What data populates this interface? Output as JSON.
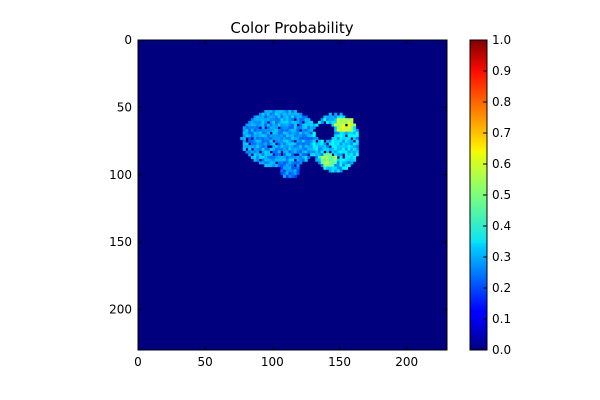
{
  "chart_data": {
    "type": "heatmap",
    "title": "Color Probability",
    "xlabel": "",
    "ylabel": "",
    "image_shape": [
      230,
      230
    ],
    "xlim": [
      0,
      230
    ],
    "ylim": [
      230,
      0
    ],
    "x_ticks": [
      {
        "value": 0,
        "label": "0"
      },
      {
        "value": 50,
        "label": "50"
      },
      {
        "value": 100,
        "label": "100"
      },
      {
        "value": 150,
        "label": "150"
      },
      {
        "value": 200,
        "label": "200"
      }
    ],
    "y_ticks": [
      {
        "value": 0,
        "label": "0"
      },
      {
        "value": 50,
        "label": "50"
      },
      {
        "value": 100,
        "label": "100"
      },
      {
        "value": 150,
        "label": "150"
      },
      {
        "value": 200,
        "label": "200"
      }
    ],
    "colormap": "jet",
    "background_value": 0.0,
    "colorbar": {
      "range": [
        0.0,
        1.0
      ],
      "ticks": [
        {
          "value": 0.0,
          "label": "0.0"
        },
        {
          "value": 0.1,
          "label": "0.1"
        },
        {
          "value": 0.2,
          "label": "0.2"
        },
        {
          "value": 0.3,
          "label": "0.3"
        },
        {
          "value": 0.4,
          "label": "0.4"
        },
        {
          "value": 0.5,
          "label": "0.5"
        },
        {
          "value": 0.6,
          "label": "0.6"
        },
        {
          "value": 0.7,
          "label": "0.7"
        },
        {
          "value": 0.8,
          "label": "0.8"
        },
        {
          "value": 0.9,
          "label": "0.9"
        },
        {
          "value": 1.0,
          "label": "1.0"
        }
      ]
    },
    "regions": [
      {
        "name": "left-lobe",
        "center": [
          105,
          72
        ],
        "radius": [
          29,
          22
        ],
        "value": 0.28,
        "noise": 0.06
      },
      {
        "name": "right-lobe",
        "center": [
          146,
          75
        ],
        "radius": [
          18,
          22
        ],
        "value": 0.32,
        "noise": 0.07
      },
      {
        "name": "right-lobe-hotspot-upper",
        "center": [
          153,
          62
        ],
        "radius": [
          7,
          6
        ],
        "value": 0.56,
        "noise": 0.06
      },
      {
        "name": "right-lobe-hotspot-lower",
        "center": [
          141,
          88
        ],
        "radius": [
          6,
          5
        ],
        "value": 0.5,
        "noise": 0.06
      },
      {
        "name": "central-hole",
        "center": [
          138,
          67
        ],
        "radius": [
          8,
          7
        ],
        "value": 0.0,
        "noise": 0.0
      },
      {
        "name": "lower-tail",
        "center": [
          112,
          95
        ],
        "radius": [
          8,
          6
        ],
        "value": 0.25,
        "noise": 0.06
      }
    ]
  }
}
